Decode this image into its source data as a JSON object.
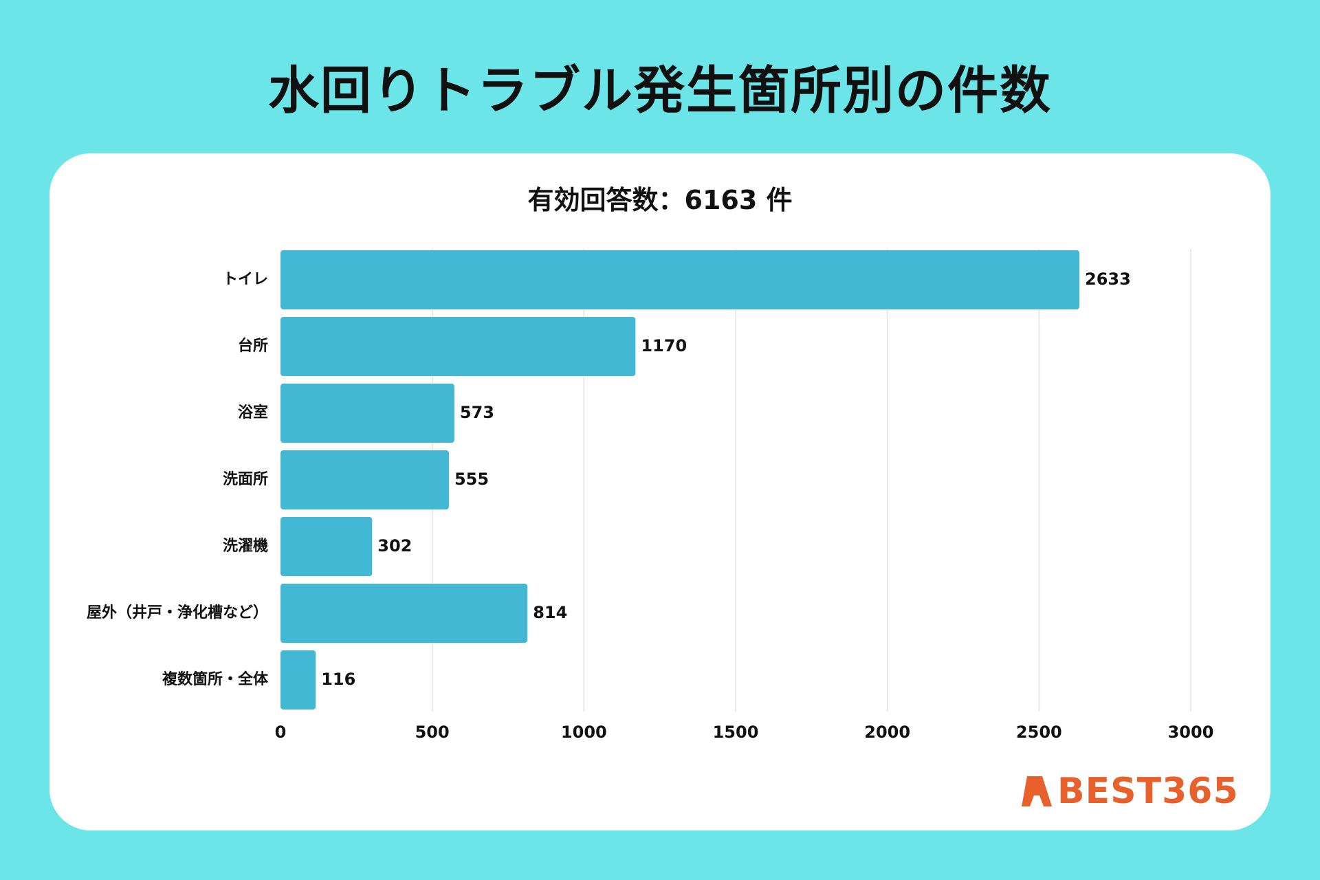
{
  "title": "水回りトラブル発生箇所別の件数",
  "subtitle": "有効回答数：6163 件",
  "logo_text": "BEST365",
  "colors": {
    "background": "#6ce5e8",
    "bar": "#42b8d5",
    "logo": "#e8602c",
    "grid": "#e2e2e2"
  },
  "chart_data": {
    "type": "bar",
    "orientation": "horizontal",
    "categories": [
      "トイレ",
      "台所",
      "浴室",
      "洗面所",
      "洗濯機",
      "屋外（井戸・浄化槽など）",
      "複数箇所・全体"
    ],
    "values": [
      2633,
      1170,
      573,
      555,
      302,
      814,
      116
    ],
    "xlim": [
      0,
      3000
    ],
    "xticks": [
      0,
      500,
      1000,
      1500,
      2000,
      2500,
      3000
    ],
    "grid": true,
    "data_labels": true
  }
}
